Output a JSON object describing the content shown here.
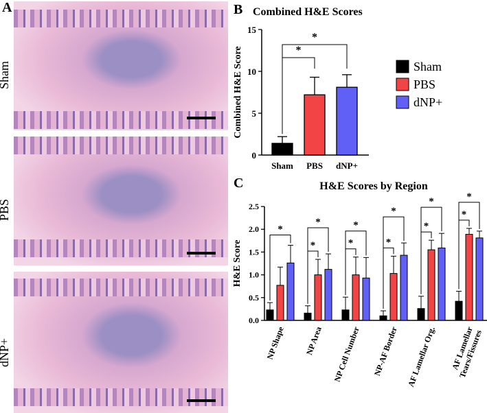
{
  "panelA": {
    "letter": "A",
    "rows": [
      "Sham",
      "PBS",
      "dNP+"
    ]
  },
  "legend": [
    {
      "label": "Sham",
      "color": "#000000"
    },
    {
      "label": "PBS",
      "color": "#f24444"
    },
    {
      "label": "dNP+",
      "color": "#6060f6"
    }
  ],
  "chart_data": [
    {
      "letter": "B",
      "type": "bar",
      "title": "Combined H&E Scores",
      "ylabel": "Combined H&E Score",
      "ylim": [
        0,
        15
      ],
      "yticks": [
        0,
        5,
        10,
        15
      ],
      "categories": [
        "Sham",
        "PBS",
        "dNP+"
      ],
      "values": [
        1.4,
        7.2,
        8.1
      ],
      "errors": [
        0.8,
        2.1,
        1.5
      ],
      "significance": [
        {
          "from": 0,
          "to": 1,
          "label": "*"
        },
        {
          "from": 0,
          "to": 2,
          "label": "*"
        }
      ]
    },
    {
      "letter": "C",
      "type": "bar",
      "title": "H&E Scores by Region",
      "ylabel": "H&E Score",
      "ylim": [
        0,
        2.5
      ],
      "yticks": [
        "0.0",
        "0.5",
        "1.0",
        "1.5",
        "2.0",
        "2.5"
      ],
      "categories": [
        "NP Shape",
        "NP Area",
        "NP Cell Number",
        "NP-AF Border",
        "AF Lamellar Org.",
        "AF Lamellar Tears/Fissures"
      ],
      "series": [
        {
          "name": "Sham",
          "values": [
            0.23,
            0.16,
            0.23,
            0.1,
            0.26,
            0.42
          ],
          "errors": [
            0.16,
            0.16,
            0.28,
            0.11,
            0.27,
            0.22
          ]
        },
        {
          "name": "PBS",
          "values": [
            0.77,
            1.0,
            1.0,
            1.03,
            1.55,
            1.89
          ],
          "errors": [
            0.4,
            0.34,
            0.39,
            0.38,
            0.21,
            0.13
          ]
        },
        {
          "name": "dNP+",
          "values": [
            1.26,
            1.12,
            0.93,
            1.43,
            1.59,
            1.81
          ],
          "errors": [
            0.39,
            0.34,
            0.45,
            0.27,
            0.32,
            0.15
          ]
        }
      ],
      "significance": [
        [
          {
            "to": 2,
            "label": "*"
          }
        ],
        [
          {
            "to": 1,
            "label": "*"
          },
          {
            "to": 2,
            "label": "*"
          }
        ],
        [
          {
            "to": 1,
            "label": "*"
          },
          {
            "to": 2,
            "label": "*"
          }
        ],
        [
          {
            "to": 1,
            "label": "*"
          },
          {
            "to": 2,
            "label": "*"
          }
        ],
        [
          {
            "to": 1,
            "label": "*"
          },
          {
            "to": 2,
            "label": "*"
          }
        ],
        [
          {
            "to": 1,
            "label": "*"
          },
          {
            "to": 2,
            "label": "*"
          }
        ]
      ]
    }
  ]
}
